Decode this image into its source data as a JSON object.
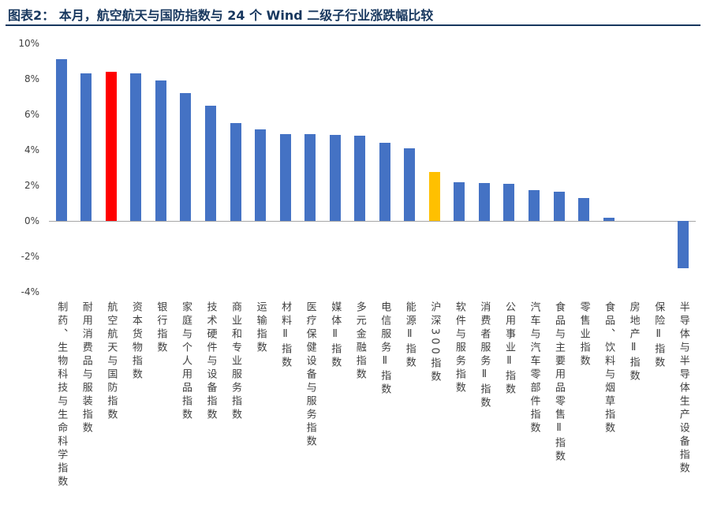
{
  "header": {
    "title": "图表2： 本月，航空航天与国防指数与 24 个 Wind 二级子行业涨跌幅比较",
    "accent_color": "#17375E"
  },
  "chart_data": {
    "type": "bar",
    "title": "本月，航空航天与国防指数与 24 个 Wind 二级子行业涨跌幅比较",
    "categories": [
      "制药、生物科技与生命科学指数",
      "耐用消费品与服装指数",
      "航空航天与国防指数",
      "资本货物指数",
      "银行指数",
      "家庭与个人用品指数",
      "技术硬件与设备指数",
      "商业和专业服务指数",
      "运输指数",
      "材料Ⅱ指数",
      "医疗保健设备与服务指数",
      "媒体Ⅱ指数",
      "多元金融指数",
      "电信服务Ⅱ指数",
      "能源Ⅱ指数",
      "沪深300指数",
      "软件与服务指数",
      "消费者服务Ⅱ指数",
      "公用事业Ⅱ指数",
      "汽车与汽车零部件指数",
      "食品与主要用品零售Ⅱ指数",
      "零售业指数",
      "食品、饮料与烟草指数",
      "房地产Ⅱ指数",
      "保险Ⅱ指数",
      "半导体与半导体生产设备指数"
    ],
    "values": [
      9.1,
      8.3,
      8.4,
      8.3,
      7.9,
      7.2,
      6.5,
      5.5,
      5.15,
      4.9,
      4.9,
      4.85,
      4.8,
      4.4,
      4.1,
      2.75,
      2.2,
      2.15,
      2.1,
      1.75,
      1.65,
      1.3,
      0.2,
      0.0,
      0.0,
      -2.65
    ],
    "ylim": [
      -4,
      10
    ],
    "ytick_values": [
      10,
      8,
      6,
      4,
      2,
      0,
      -2,
      -4
    ],
    "ytick_suffix": "%",
    "bar_color_default": "#4472C4",
    "special_bars": [
      {
        "index": 2,
        "label": "航空航天与国防指数",
        "color": "#FF0000"
      },
      {
        "index": 15,
        "label": "沪深300指数",
        "color": "#FFC000"
      }
    ],
    "grid": false,
    "legend_position": "none",
    "xlabel": "",
    "ylabel": ""
  }
}
